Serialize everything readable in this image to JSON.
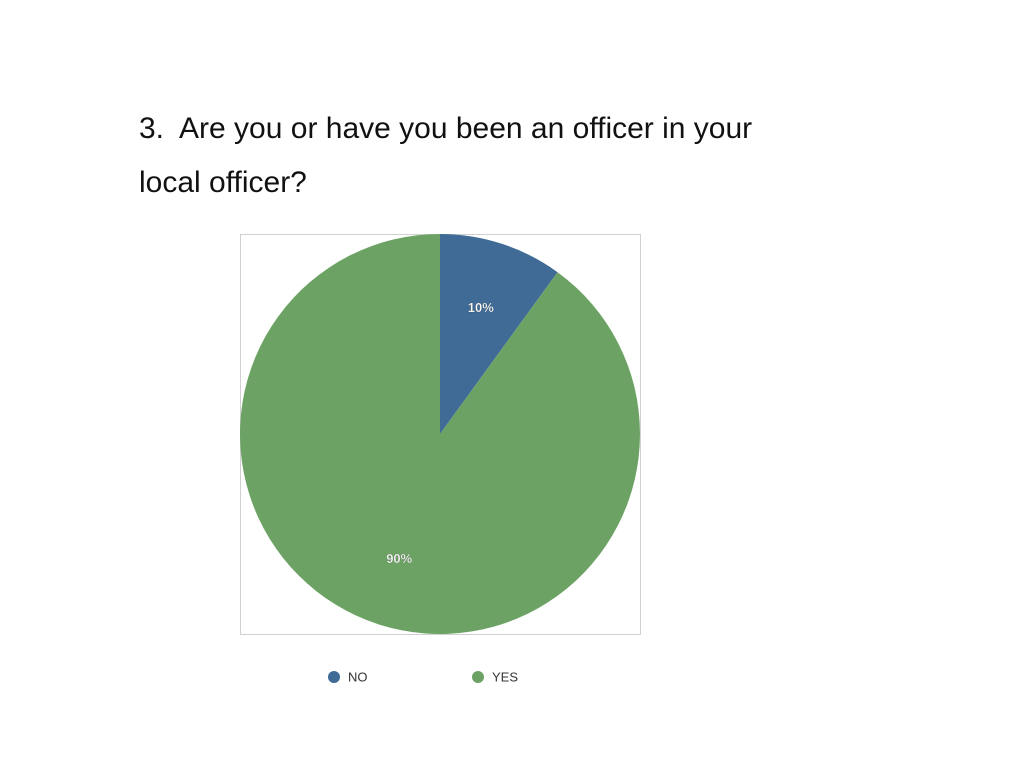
{
  "chart_data": {
    "type": "pie",
    "title": "3.  Are you or have you been an officer in your local officer?",
    "categories": [
      "NO",
      "YES"
    ],
    "values": [
      10,
      90
    ],
    "value_labels": [
      "10%",
      "90%"
    ],
    "colors": [
      "#3f6b96",
      "#6ca364"
    ],
    "legend": "bottom"
  }
}
